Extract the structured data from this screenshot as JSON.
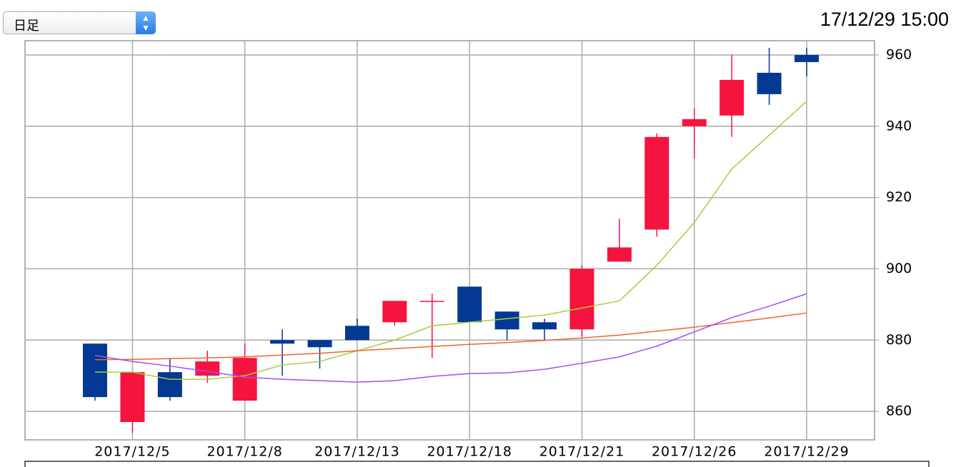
{
  "ui": {
    "select": "日足",
    "timestamp": "17/12/29 15:00"
  },
  "chart_data": {
    "type": "candlestick",
    "categories": [
      null,
      "2017/12/5",
      null,
      null,
      "2017/12/8",
      null,
      null,
      "2017/12/13",
      null,
      null,
      "2017/12/18",
      null,
      null,
      "2017/12/21",
      null,
      null,
      "2017/12/26",
      null,
      null,
      "2017/12/29"
    ],
    "open": [
      879,
      857,
      871,
      870,
      863,
      880,
      880,
      884,
      885,
      891,
      895,
      888,
      885,
      883,
      902,
      911,
      940,
      943,
      955,
      960
    ],
    "high": [
      879,
      871,
      875,
      877,
      879,
      883,
      880,
      886,
      891,
      893,
      895,
      888,
      886,
      901,
      914,
      938,
      945,
      960,
      962,
      962
    ],
    "low": [
      863,
      854,
      863,
      868,
      863,
      870,
      872,
      880,
      884,
      875,
      885,
      880,
      880,
      881,
      902,
      909,
      931,
      937,
      946,
      954
    ],
    "close": [
      864,
      871,
      864,
      874,
      875,
      879,
      878,
      880,
      891,
      891,
      885,
      883,
      883,
      900,
      906,
      937,
      942,
      953,
      949,
      958
    ],
    "up_color": "#f5143f",
    "down_color": "#033893",
    "lines": [
      {
        "color": "#a5cf3a",
        "values": [
          871,
          871,
          869,
          869,
          870,
          873,
          874,
          877,
          880,
          884,
          885,
          886,
          887,
          889,
          891,
          901,
          913,
          928,
          937.5,
          947
        ]
      },
      {
        "color": "#f0642d",
        "values": [
          874.5,
          874.6,
          874.8,
          875,
          875.3,
          875.8,
          876.3,
          877,
          877.6,
          878.2,
          878.8,
          879.3,
          879.9,
          880.6,
          881.4,
          882.5,
          883.6,
          884.9,
          886.2,
          887.6
        ]
      },
      {
        "color": "#a64cf0",
        "values": [
          875.7,
          874,
          872.7,
          871.2,
          869.6,
          869,
          868.6,
          868.2,
          868.6,
          869.8,
          870.6,
          870.8,
          871.8,
          873.5,
          875.3,
          878.3,
          882.3,
          886.3,
          889.5,
          893
        ]
      }
    ],
    "ylim": [
      852,
      964
    ],
    "yticks": [
      860,
      880,
      900,
      920,
      940,
      960
    ],
    "grid": true
  }
}
